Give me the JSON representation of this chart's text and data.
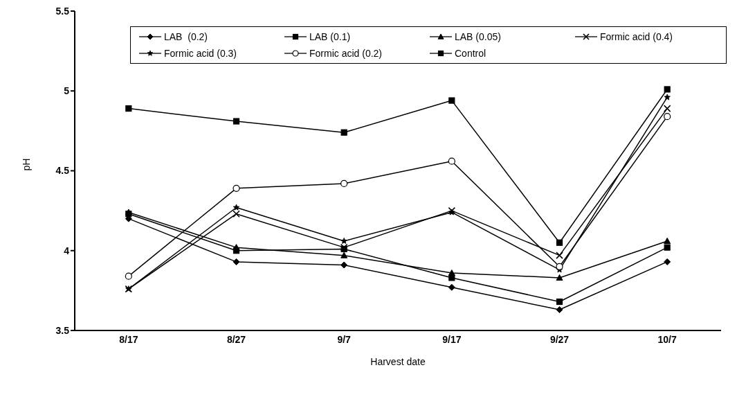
{
  "chart_data": {
    "type": "line",
    "xlabel": "Harvest date",
    "ylabel": "pH",
    "categories": [
      "8/17",
      "8/27",
      "9/7",
      "9/17",
      "9/27",
      "10/7"
    ],
    "ylim": [
      3.5,
      5.5
    ],
    "yticks": [
      3.5,
      4,
      4.5,
      5,
      5.5
    ],
    "grid": false,
    "legend": "top",
    "line_style": "solid",
    "series": [
      {
        "name": "LAB  (0.2)",
        "color": "#000000",
        "marker": "diamond",
        "values": [
          4.2,
          3.93,
          3.91,
          3.77,
          3.63,
          3.93
        ]
      },
      {
        "name": "LAB (0.1)",
        "color": "#000000",
        "marker": "square",
        "values": [
          4.23,
          4.0,
          4.01,
          3.83,
          3.68,
          4.02
        ]
      },
      {
        "name": "LAB (0.05)",
        "color": "#000000",
        "marker": "triangle",
        "values": [
          4.24,
          4.02,
          3.97,
          3.86,
          3.83,
          4.06
        ]
      },
      {
        "name": "Formic acid (0.4)",
        "color": "#000000",
        "marker": "cross",
        "values": [
          3.76,
          4.23,
          4.02,
          4.25,
          3.97,
          4.89
        ]
      },
      {
        "name": "Formic acid (0.3)",
        "color": "#000000",
        "marker": "star",
        "values": [
          3.76,
          4.27,
          4.06,
          4.24,
          3.88,
          4.96
        ]
      },
      {
        "name": "Formic acid (0.2)",
        "color": "#000000",
        "marker": "circle",
        "values": [
          3.84,
          4.39,
          4.42,
          4.56,
          3.9,
          4.84
        ]
      },
      {
        "name": "Control",
        "color": "#000000",
        "marker": "square",
        "values": [
          4.89,
          4.81,
          4.74,
          4.94,
          4.05,
          5.01
        ]
      }
    ]
  }
}
